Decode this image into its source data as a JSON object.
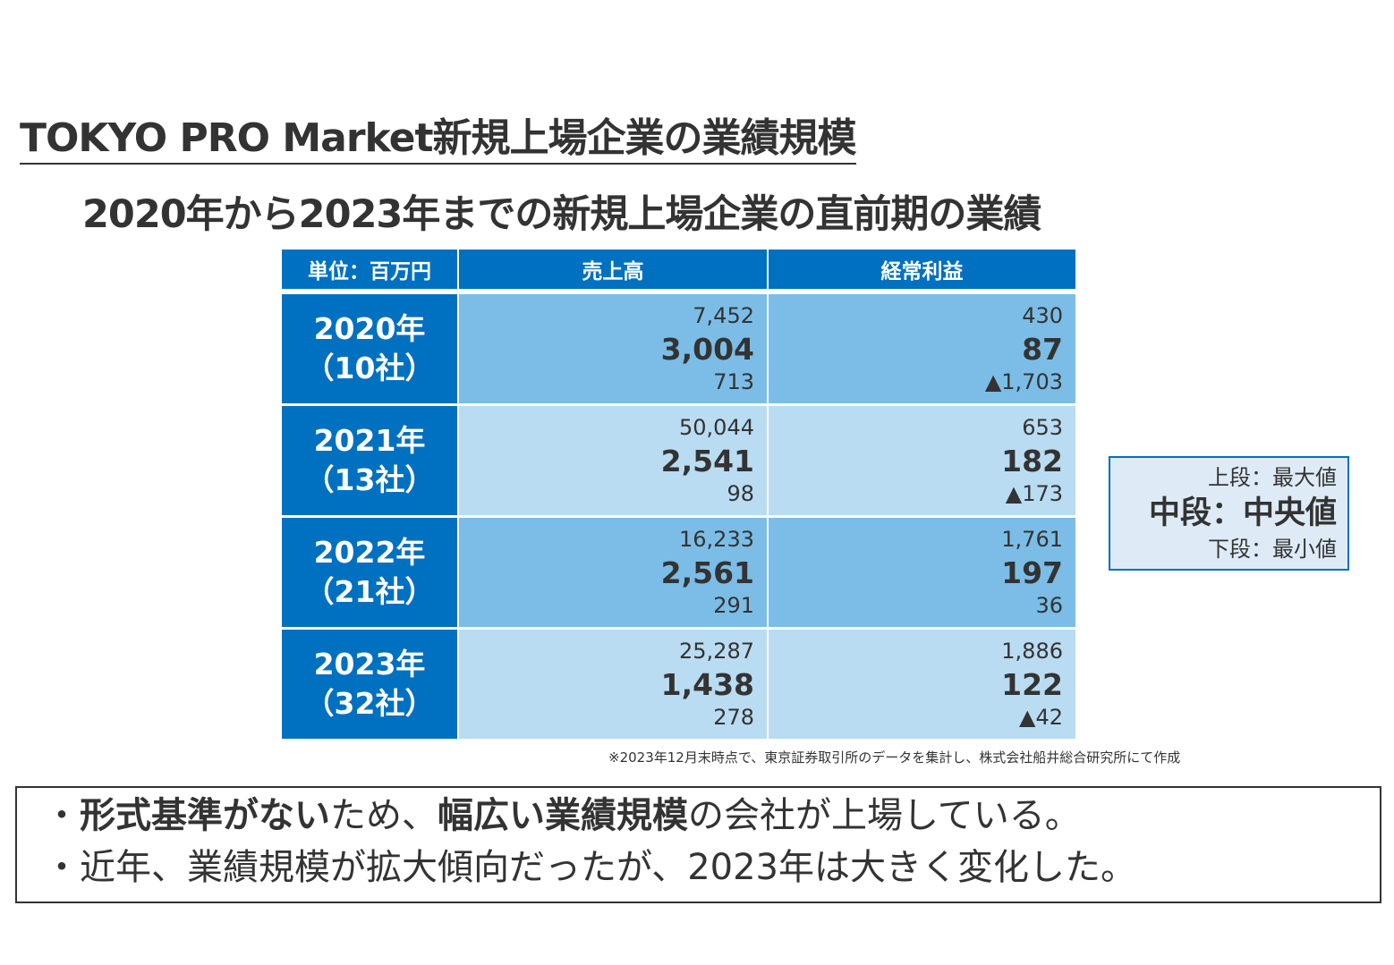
{
  "title": "TOKYO PRO Market新規上場企業の業績規模",
  "subtitle": "2020年から2023年までの新規上場企業の直前期の業績",
  "table": {
    "headers": [
      "単位：百万円",
      "売上高",
      "経常利益"
    ],
    "rows": [
      {
        "year": "2020年",
        "count": "（10社）",
        "sales": [
          "7,452",
          "3,004",
          "713"
        ],
        "profit": [
          "430",
          "87",
          "▲1,703"
        ]
      },
      {
        "year": "2021年",
        "count": "（13社）",
        "sales": [
          "50,044",
          "2,541",
          "98"
        ],
        "profit": [
          "653",
          "182",
          "▲173"
        ]
      },
      {
        "year": "2022年",
        "count": "（21社）",
        "sales": [
          "16,233",
          "2,561",
          "291"
        ],
        "profit": [
          "1,761",
          "197",
          "36"
        ]
      },
      {
        "year": "2023年",
        "count": "（32社）",
        "sales": [
          "25,287",
          "1,438",
          "278"
        ],
        "profit": [
          "1,886",
          "122",
          "▲42"
        ]
      }
    ]
  },
  "legend": {
    "top": "上段：最大値",
    "middle": "中段：中央値",
    "bottom": "下段：最小値"
  },
  "note": "※2023年12月末時点で、東京証券取引所のデータを集計し、株式会社船井総合研究所にて作成",
  "bullets": [
    {
      "parts": [
        {
          "t": "・",
          "b": false
        },
        {
          "t": "形式基準がない",
          "b": true
        },
        {
          "t": "ため、",
          "b": false
        },
        {
          "t": "幅広い業績規模",
          "b": true
        },
        {
          "t": "の会社が上場している。",
          "b": false
        }
      ]
    },
    {
      "parts": [
        {
          "t": "・近年、業績規模が拡大傾向だったが、2023年は大きく変化した。",
          "b": false
        }
      ]
    }
  ]
}
